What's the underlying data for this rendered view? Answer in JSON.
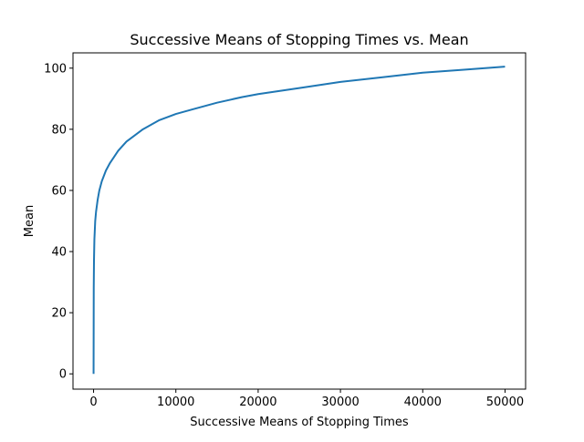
{
  "chart_data": {
    "type": "line",
    "title": "Successive Means of Stopping Times vs. Mean",
    "xlabel": "Successive Means of Stopping Times",
    "ylabel": "Mean",
    "xlim": [
      -2500,
      52500
    ],
    "ylim": [
      -5,
      105
    ],
    "xticks": [
      0,
      10000,
      20000,
      30000,
      40000,
      50000
    ],
    "xtick_labels": [
      "0",
      "10000",
      "20000",
      "30000",
      "40000",
      "50000"
    ],
    "yticks": [
      0,
      20,
      40,
      60,
      80,
      100
    ],
    "ytick_labels": [
      "0",
      "20",
      "40",
      "60",
      "80",
      "100"
    ],
    "grid": false,
    "series": [
      {
        "color": "#1f77b4",
        "x": [
          0,
          20,
          50,
          100,
          200,
          300,
          500,
          700,
          1000,
          1500,
          2000,
          2500,
          3000,
          4000,
          5000,
          6000,
          8000,
          10000,
          12000,
          15000,
          18000,
          20000,
          25000,
          30000,
          35000,
          40000,
          45000,
          50000
        ],
        "y": [
          0,
          28,
          37,
          44,
          50,
          53,
          57,
          60,
          63,
          66.5,
          69,
          71,
          73,
          76,
          78,
          80,
          83,
          85,
          86.5,
          88.7,
          90.5,
          91.5,
          93.5,
          95.5,
          97,
          98.5,
          99.5,
          100.5
        ]
      }
    ]
  }
}
